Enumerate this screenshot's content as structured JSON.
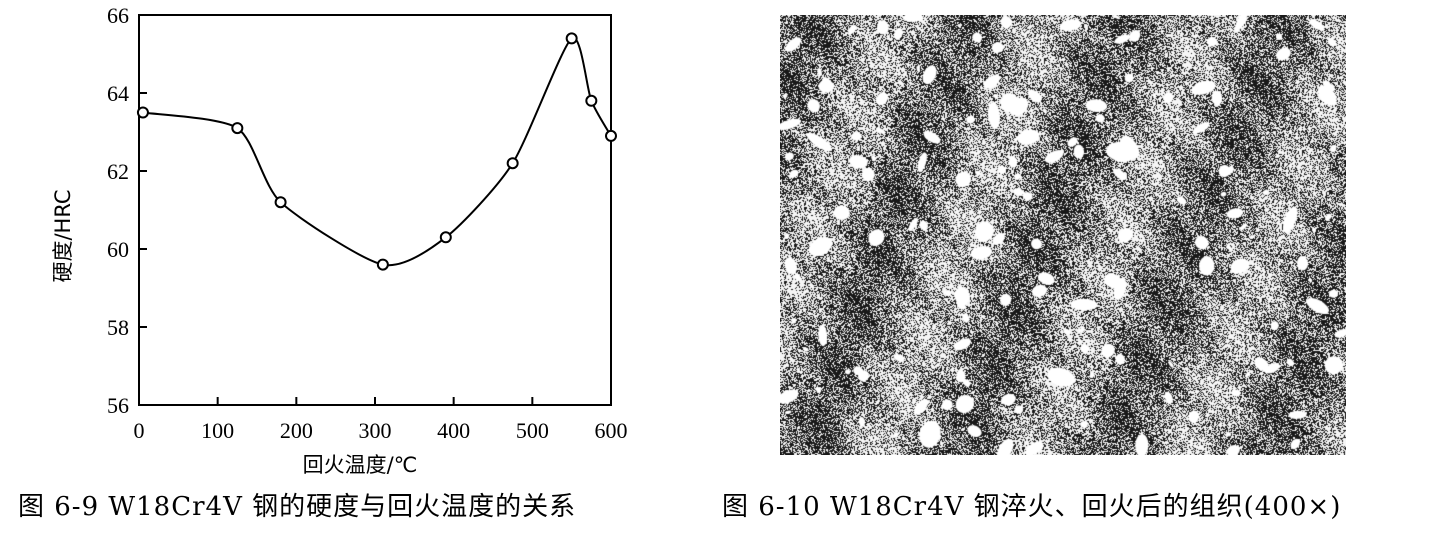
{
  "chart_data": {
    "type": "line",
    "title": "",
    "xlabel": "回火温度/℃",
    "ylabel": "硬度/HRC",
    "xlim": [
      0,
      600
    ],
    "ylim": [
      56,
      66
    ],
    "x_ticks": [
      0,
      100,
      200,
      300,
      400,
      500,
      600
    ],
    "y_ticks": [
      56,
      58,
      60,
      62,
      64,
      66
    ],
    "grid": false,
    "marker": "open-circle",
    "series": [
      {
        "x": [
          5,
          125,
          180,
          310,
          390,
          475,
          550,
          575,
          600
        ],
        "y": [
          63.5,
          63.1,
          61.2,
          59.6,
          60.3,
          62.2,
          65.4,
          63.8,
          62.9
        ]
      }
    ]
  },
  "captions": {
    "fig1": "图 6-9 W18Cr4V 钢的硬度与回火温度的关系",
    "fig2": "图 6-10 W18Cr4V 钢淬火、回火后的组织(400×)"
  },
  "micrograph": {
    "kind": "grayscale microstructure image",
    "colors": {
      "background": "#ffffff",
      "dark": "#1a1a1a",
      "mid": "#777777"
    }
  }
}
